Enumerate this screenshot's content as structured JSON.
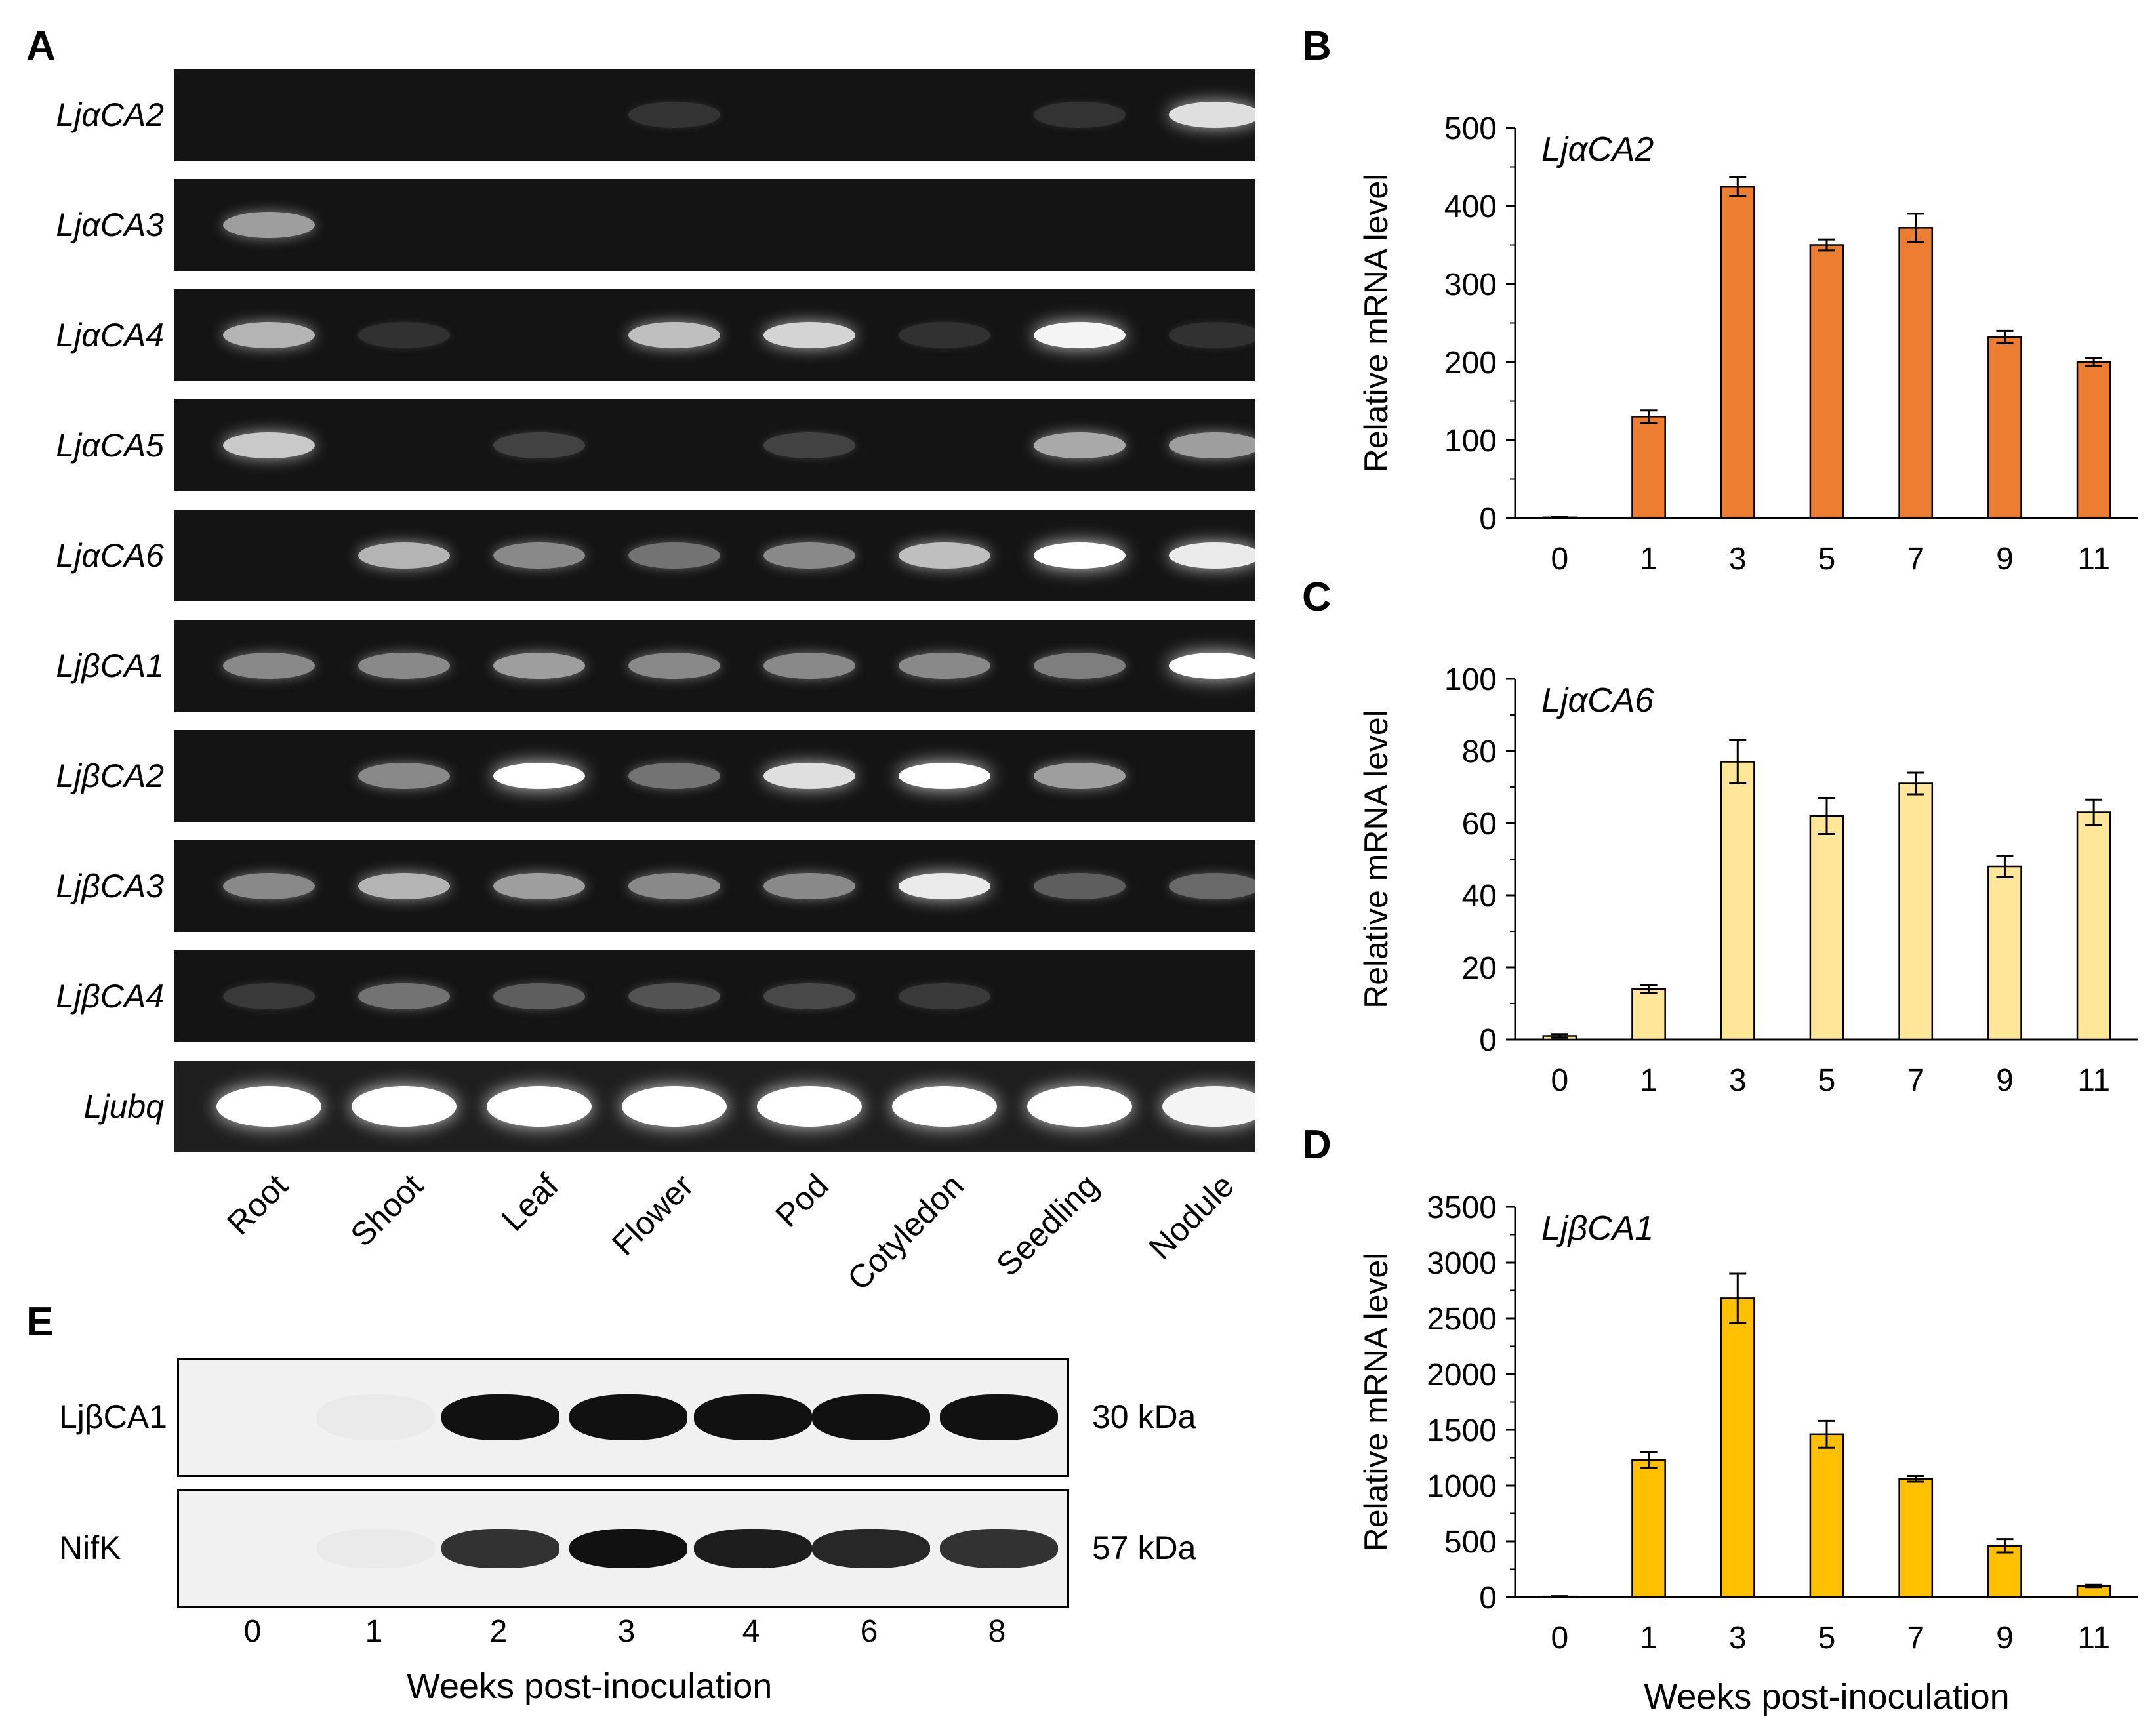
{
  "panels": {
    "a": "A",
    "b": "B",
    "c": "C",
    "d": "D",
    "e": "E"
  },
  "gel": {
    "genes": [
      "LjαCA2",
      "LjαCA3",
      "LjαCA4",
      "LjαCA5",
      "LjαCA6",
      "LjβCA1",
      "LjβCA2",
      "LjβCA3",
      "LjβCA4",
      "Ljubq"
    ],
    "tissues": [
      "Root",
      "Shoot",
      "Leaf",
      "Flower",
      "Pod",
      "Cotyledon",
      "Seedling",
      "Nodule"
    ],
    "intensity": [
      [
        0,
        0,
        0,
        0.05,
        0,
        0,
        0.05,
        0.85
      ],
      [
        0.55,
        0,
        0,
        0,
        0,
        0,
        0,
        0
      ],
      [
        0.65,
        0.04,
        0,
        0.7,
        0.8,
        0.04,
        0.95,
        0.04
      ],
      [
        0.75,
        0,
        0.12,
        0,
        0.12,
        0,
        0.6,
        0.55
      ],
      [
        0,
        0.65,
        0.45,
        0.35,
        0.45,
        0.7,
        1.0,
        0.9
      ],
      [
        0.45,
        0.45,
        0.55,
        0.45,
        0.45,
        0.45,
        0.4,
        1.0
      ],
      [
        0,
        0.45,
        1.0,
        0.35,
        0.85,
        1.0,
        0.55,
        0
      ],
      [
        0.45,
        0.65,
        0.55,
        0.45,
        0.45,
        0.9,
        0.25,
        0.3
      ],
      [
        0.08,
        0.35,
        0.25,
        0.2,
        0.15,
        0.08,
        0,
        0
      ],
      [
        1.0,
        1.0,
        1.0,
        1.0,
        1.0,
        1.0,
        1.0,
        0.95
      ]
    ]
  },
  "western": {
    "rows": [
      {
        "label": "LjβCA1",
        "size": "30 kDa",
        "intensity": [
          0,
          0.03,
          1,
          1,
          1,
          1,
          1
        ]
      },
      {
        "label": "NifK",
        "size": "57 kDa",
        "intensity": [
          0,
          0.03,
          0.85,
          1,
          0.95,
          0.9,
          0.85
        ]
      }
    ],
    "lanes": [
      "0",
      "1",
      "2",
      "3",
      "4",
      "6",
      "8"
    ],
    "xlabel": "Weeks post-inoculation"
  },
  "chart_data": [
    {
      "type": "bar",
      "title": "LjαCA2",
      "ylabel": "Relative mRNA level",
      "xlabel": "",
      "categories": [
        "0",
        "1",
        "3",
        "5",
        "7",
        "9",
        "11"
      ],
      "values": [
        1,
        130,
        425,
        350,
        372,
        232,
        200
      ],
      "errors": [
        1,
        8,
        12,
        7,
        18,
        8,
        5
      ],
      "ylim": [
        0,
        500
      ],
      "yticks": [
        "0",
        "100",
        "200",
        "300",
        "400",
        "500"
      ],
      "color": "#ed7d31"
    },
    {
      "type": "bar",
      "title": "LjαCA6",
      "ylabel": "Relative mRNA level",
      "xlabel": "",
      "categories": [
        "0",
        "1",
        "3",
        "5",
        "7",
        "9",
        "11"
      ],
      "values": [
        1,
        14,
        77,
        62,
        71,
        48,
        63
      ],
      "errors": [
        0.5,
        1,
        6,
        5,
        3,
        3,
        3.5
      ],
      "ylim": [
        0,
        100
      ],
      "yticks": [
        "0",
        "20",
        "40",
        "60",
        "80",
        "100"
      ],
      "color": "#ffe699"
    },
    {
      "type": "bar",
      "title": "LjβCA1",
      "ylabel": "Relative mRNA level",
      "xlabel": "Weeks post-inoculation",
      "categories": [
        "0",
        "1",
        "3",
        "5",
        "7",
        "9",
        "11"
      ],
      "values": [
        5,
        1230,
        2680,
        1460,
        1060,
        460,
        100
      ],
      "errors": [
        3,
        70,
        220,
        120,
        25,
        60,
        10
      ],
      "ylim": [
        0,
        3500
      ],
      "yticks": [
        "0",
        "500",
        "1000",
        "1500",
        "2000",
        "2500",
        "3000",
        "3500"
      ],
      "color": "#ffc000"
    }
  ]
}
